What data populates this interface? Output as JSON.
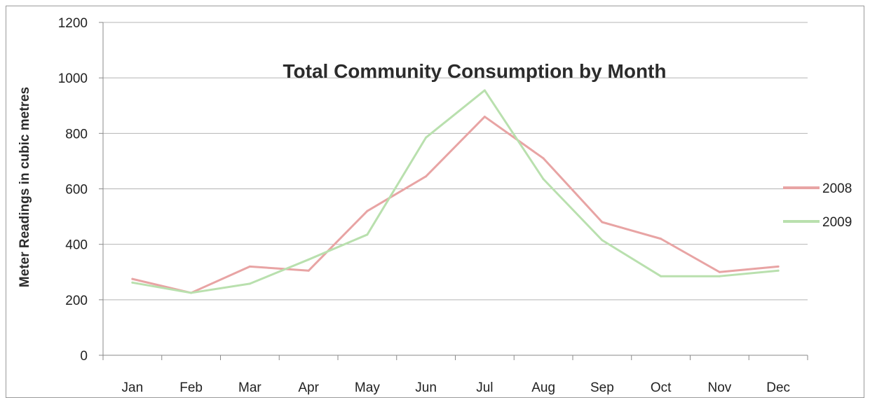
{
  "chart_data": {
    "type": "line",
    "title": "Total Community Consumption by Month",
    "xlabel": "",
    "ylabel": "Meter Readings in cubic metres",
    "categories": [
      "Jan",
      "Feb",
      "Mar",
      "Apr",
      "May",
      "Jun",
      "Jul",
      "Aug",
      "Sep",
      "Oct",
      "Nov",
      "Dec"
    ],
    "ylim": [
      0,
      1200
    ],
    "yticks": [
      0,
      200,
      400,
      600,
      800,
      1000,
      1200
    ],
    "grid": true,
    "legend_position": "right",
    "series": [
      {
        "name": "2008",
        "color": "#e8a4a4",
        "values": [
          275,
          225,
          320,
          305,
          520,
          645,
          860,
          710,
          480,
          420,
          300,
          320
        ]
      },
      {
        "name": "2009",
        "color": "#b9e0ae",
        "values": [
          262,
          225,
          258,
          345,
          435,
          785,
          955,
          635,
          415,
          285,
          285,
          305
        ]
      }
    ]
  }
}
